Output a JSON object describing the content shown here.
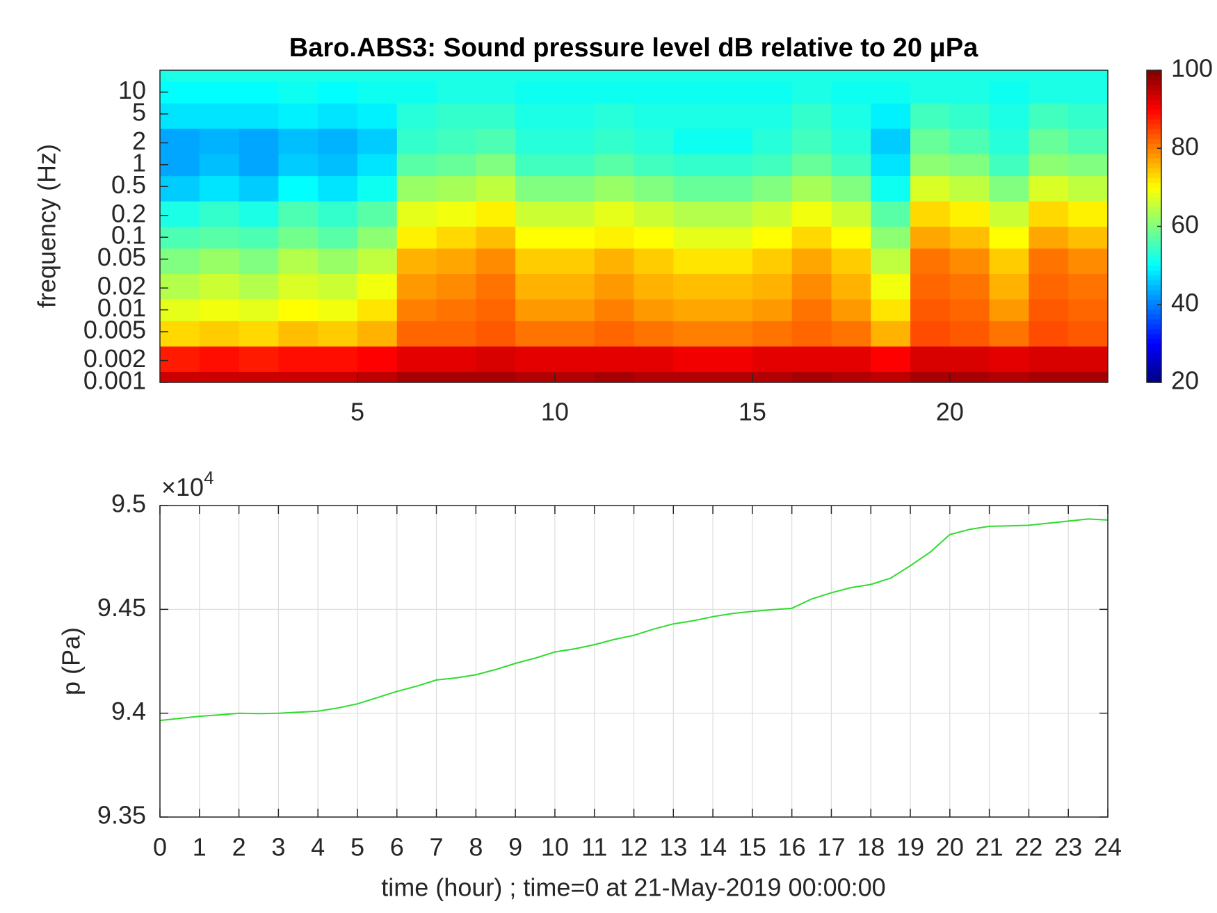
{
  "chart_data": [
    {
      "type": "heatmap",
      "title": "Baro.ABS3: Sound pressure level dB relative to 20 μPa",
      "ylabel": "frequency (Hz)",
      "xlim": [
        0,
        24
      ],
      "xticks": [
        5,
        10,
        15,
        20
      ],
      "ylim": [
        0.001,
        20
      ],
      "log_y": true,
      "yticks": [
        0.001,
        0.002,
        0.005,
        0.01,
        0.02,
        0.05,
        0.1,
        0.2,
        0.5,
        1,
        2,
        5,
        10
      ],
      "colormap": "jet",
      "clim": [
        20,
        100
      ],
      "cticks": [
        20,
        40,
        60,
        80,
        100
      ],
      "x": [
        0.5,
        1.5,
        2.5,
        3.5,
        4.5,
        5.5,
        6.5,
        7.5,
        8.5,
        9.5,
        10.5,
        11.5,
        12.5,
        13.5,
        14.5,
        15.5,
        16.5,
        17.5,
        18.5,
        19.5,
        20.5,
        21.5,
        22.5,
        23.5
      ],
      "y": [
        0.001,
        0.002,
        0.005,
        0.01,
        0.02,
        0.05,
        0.1,
        0.2,
        0.5,
        1,
        2,
        5,
        10,
        20
      ],
      "values": [
        [
          94,
          94,
          94,
          94,
          94,
          95,
          97,
          97,
          97,
          96,
          96,
          97,
          96,
          96,
          96,
          96,
          97,
          96,
          95,
          97,
          97,
          96,
          97,
          97
        ],
        [
          88,
          89,
          88,
          89,
          89,
          90,
          92,
          92,
          93,
          92,
          92,
          92,
          92,
          91,
          91,
          92,
          92,
          92,
          90,
          93,
          93,
          92,
          93,
          93
        ],
        [
          73,
          74,
          73,
          75,
          74,
          76,
          82,
          82,
          83,
          81,
          81,
          82,
          81,
          80,
          80,
          81,
          82,
          81,
          76,
          84,
          83,
          81,
          84,
          83
        ],
        [
          68,
          69,
          68,
          70,
          69,
          72,
          80,
          81,
          82,
          78,
          78,
          80,
          78,
          77,
          77,
          78,
          81,
          78,
          72,
          83,
          82,
          78,
          83,
          82
        ],
        [
          64,
          66,
          64,
          67,
          66,
          69,
          78,
          79,
          81,
          76,
          76,
          78,
          76,
          75,
          75,
          76,
          79,
          76,
          69,
          82,
          81,
          76,
          82,
          81
        ],
        [
          60,
          62,
          60,
          64,
          62,
          65,
          76,
          77,
          79,
          74,
          74,
          76,
          74,
          72,
          72,
          74,
          77,
          74,
          65,
          81,
          79,
          74,
          81,
          79
        ],
        [
          56,
          57,
          56,
          59,
          57,
          61,
          71,
          73,
          75,
          70,
          70,
          71,
          70,
          68,
          68,
          70,
          73,
          70,
          61,
          77,
          75,
          70,
          77,
          75
        ],
        [
          52,
          54,
          52,
          56,
          54,
          57,
          68,
          69,
          71,
          66,
          66,
          68,
          66,
          64,
          64,
          66,
          69,
          66,
          57,
          73,
          71,
          66,
          73,
          71
        ],
        [
          46,
          48,
          46,
          50,
          48,
          51,
          62,
          63,
          65,
          60,
          60,
          62,
          60,
          58,
          58,
          60,
          63,
          60,
          51,
          67,
          65,
          60,
          67,
          65
        ],
        [
          43,
          45,
          43,
          46,
          45,
          48,
          57,
          58,
          60,
          55,
          55,
          57,
          55,
          54,
          54,
          55,
          58,
          55,
          48,
          61,
          60,
          55,
          61,
          60
        ],
        [
          43,
          44,
          43,
          45,
          44,
          46,
          54,
          55,
          56,
          53,
          53,
          54,
          53,
          51,
          51,
          53,
          55,
          53,
          46,
          58,
          56,
          53,
          58,
          56
        ],
        [
          48,
          48,
          48,
          49,
          48,
          49,
          53,
          54,
          54,
          52,
          52,
          53,
          52,
          52,
          52,
          52,
          54,
          52,
          49,
          55,
          54,
          52,
          55,
          54
        ],
        [
          50,
          50,
          50,
          51,
          50,
          51,
          51,
          52,
          52,
          51,
          51,
          51,
          51,
          51,
          51,
          51,
          52,
          51,
          51,
          52,
          52,
          51,
          52,
          52
        ],
        [
          52,
          52,
          52,
          52,
          52,
          52,
          52,
          52,
          52,
          52,
          52,
          52,
          52,
          52,
          52,
          52,
          52,
          52,
          52,
          52,
          52,
          52,
          52,
          52
        ]
      ]
    },
    {
      "type": "line",
      "xlabel": "time (hour) ; time=0 at 21-May-2019 00:00:00",
      "ylabel": "p (Pa)",
      "y_multiplier": "×10",
      "y_multiplier_exp": "4",
      "xlim": [
        0,
        24
      ],
      "xticks": [
        0,
        1,
        2,
        3,
        4,
        5,
        6,
        7,
        8,
        9,
        10,
        11,
        12,
        13,
        14,
        15,
        16,
        17,
        18,
        19,
        20,
        21,
        22,
        23,
        24
      ],
      "ylim": [
        93500,
        95000
      ],
      "yticks": [
        {
          "value": 93500,
          "label": "9.35"
        },
        {
          "value": 94000,
          "label": "9.4"
        },
        {
          "value": 94500,
          "label": "9.45"
        },
        {
          "value": 95000,
          "label": "9.5"
        }
      ],
      "grid": true,
      "series": [
        {
          "color": "#2edb2e",
          "x": [
            0,
            0.5,
            1,
            1.5,
            2,
            2.5,
            3,
            3.5,
            4,
            4.5,
            5,
            5.5,
            6,
            6.5,
            7,
            7.5,
            8,
            8.5,
            9,
            9.5,
            10,
            10.5,
            11,
            11.5,
            12,
            12.5,
            13,
            13.5,
            14,
            14.5,
            15,
            15.5,
            16,
            16.5,
            17,
            17.5,
            18,
            18.5,
            19,
            19.5,
            20,
            20.5,
            21,
            21.5,
            22,
            22.5,
            23,
            23.5,
            24
          ],
          "values": [
            93965,
            93975,
            93985,
            93992,
            94000,
            93998,
            94000,
            94005,
            94010,
            94025,
            94045,
            94075,
            94105,
            94130,
            94160,
            94170,
            94185,
            94210,
            94240,
            94265,
            94295,
            94310,
            94330,
            94355,
            94375,
            94405,
            94430,
            94445,
            94465,
            94480,
            94490,
            94498,
            94505,
            94550,
            94580,
            94605,
            94620,
            94650,
            94710,
            94775,
            94860,
            94885,
            94900,
            94902,
            94905,
            94915,
            94925,
            94935,
            94930
          ]
        }
      ]
    }
  ]
}
